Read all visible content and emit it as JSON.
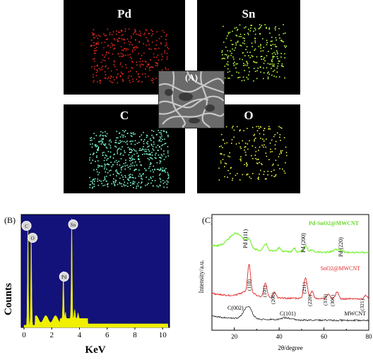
{
  "panel_a": {
    "label": "(A)",
    "maps": [
      {
        "element": "Pd",
        "color": "#e0281e"
      },
      {
        "element": "Sn",
        "color": "#b6ff3a"
      },
      {
        "element": "C",
        "color": "#7af5d0"
      },
      {
        "element": "O",
        "color": "#e8f040"
      }
    ]
  },
  "panel_b": {
    "label": "(B)",
    "ylabel": "Counts",
    "xlabel": "KeV",
    "xticks": [
      "0",
      "2",
      "4",
      "6",
      "8",
      "10"
    ],
    "peak_labels": [
      "C",
      "O",
      "Pd",
      "Sn"
    ],
    "background_color": "#12127a",
    "spectrum_color": "#f0f000"
  },
  "panel_c": {
    "label": "(C)",
    "ylabel": "Intensity/a.u.",
    "xlabel": "2θ/degree",
    "xticks": [
      "20",
      "40",
      "60",
      "80"
    ],
    "series_labels": [
      "Pd-SnO2@MWCNT",
      "SnO2@MWCNT",
      "MWCNT"
    ],
    "pd_peaks": [
      "Pd (111)",
      "Pd (200)",
      "Pd (220)"
    ],
    "sno2_peaks": [
      "(110)",
      "(101)",
      "(200)",
      "(211)",
      "(220)",
      "(310)",
      "(301)",
      "(321)"
    ],
    "cnt_peaks": [
      "C(002)",
      "C(101)"
    ],
    "colors": {
      "pd": "#7cf03a",
      "sno2": "#e02828",
      "cnt": "#222222"
    }
  },
  "chart_data": [
    {
      "type": "line",
      "title": "",
      "xlabel": "KeV",
      "ylabel": "Counts",
      "xlim": [
        0,
        10.5
      ],
      "peaks": [
        {
          "label": "C",
          "x": 0.28,
          "relative_height": 0.93
        },
        {
          "label": "O",
          "x": 0.52,
          "relative_height": 0.85
        },
        {
          "label": "Pd",
          "x": 2.84,
          "relative_height": 0.44
        },
        {
          "label": "Sn",
          "x": 3.44,
          "relative_height": 0.93
        }
      ]
    },
    {
      "type": "line",
      "title": "",
      "xlabel": "2θ/degree",
      "ylabel": "Intensity/a.u.",
      "xlim": [
        10,
        80
      ],
      "series": [
        {
          "name": "Pd-SnO2@MWCNT",
          "peaks_2theta": [
            40.1,
            46.7,
            68.1
          ]
        },
        {
          "name": "SnO2@MWCNT",
          "peaks_2theta": [
            26.6,
            33.9,
            37.9,
            51.8,
            54.7,
            61.9,
            65.9,
            78.7
          ]
        },
        {
          "name": "MWCNT",
          "peaks_2theta": [
            26.0,
            43.0
          ]
        }
      ]
    }
  ]
}
